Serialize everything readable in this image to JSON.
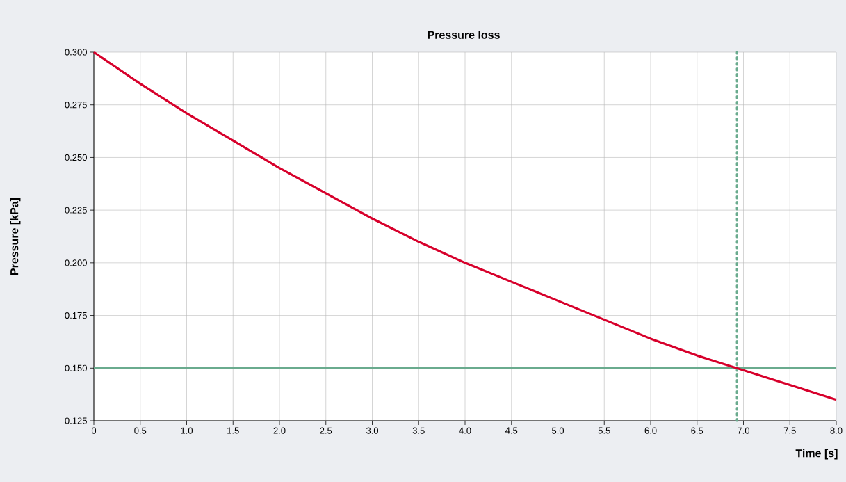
{
  "chart_data": {
    "type": "line",
    "title": "Pressure loss",
    "xlabel": "Time [s]",
    "ylabel": "Pressure [kPa]",
    "x": [
      0,
      0.5,
      1,
      1.5,
      2,
      2.5,
      3,
      3.5,
      4,
      4.5,
      5,
      5.5,
      6,
      6.5,
      7,
      7.5,
      8
    ],
    "series": [
      {
        "color": "#d7002b",
        "values": [
          0.3,
          0.285,
          0.271,
          0.258,
          0.245,
          0.233,
          0.221,
          0.21,
          0.2,
          0.191,
          0.182,
          0.173,
          0.164,
          0.156,
          0.149,
          0.142,
          0.135
        ]
      }
    ],
    "xlim": [
      0,
      8
    ],
    "ylim": [
      0.125,
      0.3
    ],
    "xticks": [
      0,
      0.5,
      {
        "value": 1,
        "label": "1.0"
      },
      1.5,
      {
        "value": 2,
        "label": "2.0"
      },
      2.5,
      {
        "value": 3,
        "label": "3.0"
      },
      3.5,
      {
        "value": 4,
        "label": "4.0"
      },
      4.5,
      {
        "value": 5,
        "label": "5.0"
      },
      5.5,
      {
        "value": 6,
        "label": "6.0"
      },
      6.5,
      {
        "value": 7,
        "label": "7.0"
      },
      7.5,
      {
        "value": 8,
        "label": "8.0"
      }
    ],
    "yticks": [
      {
        "value": 0.125,
        "label": "0.125"
      },
      {
        "value": 0.15,
        "label": "0.150"
      },
      {
        "value": 0.175,
        "label": "0.175"
      },
      {
        "value": 0.2,
        "label": "0.200"
      },
      {
        "value": 0.225,
        "label": "0.225"
      },
      {
        "value": 0.25,
        "label": "0.250"
      },
      {
        "value": 0.275,
        "label": "0.275"
      },
      {
        "value": 0.3,
        "label": "0.300"
      }
    ],
    "ref_lines": [
      {
        "axis": "y",
        "value": 0.15,
        "color": "#6aab8e",
        "line_style": "solid"
      },
      {
        "axis": "x",
        "value": 6.93,
        "color": "#6aab8e",
        "line_style": "dotted"
      }
    ],
    "grid": true,
    "line_style": "solid"
  }
}
